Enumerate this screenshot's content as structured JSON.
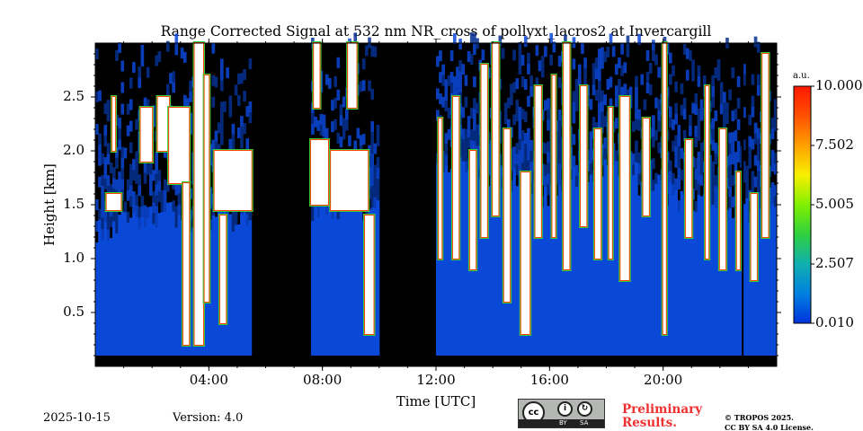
{
  "chart_data": {
    "type": "heatmap",
    "title": "Range Corrected Signal at 532 nm NR_cross of pollyxt_lacros2 at Invercargill",
    "xlabel": "Time [UTC]",
    "ylabel": "Height [km]",
    "xlim_hours": [
      0,
      24
    ],
    "ylim_km": [
      0,
      3.0
    ],
    "xticks": [
      {
        "v": 4,
        "label": "04:00"
      },
      {
        "v": 8,
        "label": "08:00"
      },
      {
        "v": 12,
        "label": "12:00"
      },
      {
        "v": 16,
        "label": "16:00"
      },
      {
        "v": 20,
        "label": "20:00"
      }
    ],
    "yticks": [
      {
        "v": 0.5,
        "label": "0.5"
      },
      {
        "v": 1.0,
        "label": "1.0"
      },
      {
        "v": 1.5,
        "label": "1.5"
      },
      {
        "v": 2.0,
        "label": "2.0"
      },
      {
        "v": 2.5,
        "label": "2.5"
      }
    ],
    "colorbar": {
      "unit": "a.u.",
      "min": 0.01,
      "max": 10.0,
      "ticks": [
        "10.000",
        "7.502",
        "5.005",
        "2.507",
        "0.010"
      ],
      "colors": [
        "#0033dd",
        "#0080e0",
        "#10b0b0",
        "#30d040",
        "#80f000",
        "#f8f000",
        "#ffa000",
        "#ff5000",
        "#ff1800"
      ]
    },
    "background_signal": 1.0,
    "no_data_below_km": 0.1,
    "data_gaps_hours": [
      [
        5.5,
        7.55
      ],
      [
        9.95,
        12.0
      ]
    ],
    "aerosol_top_km": [
      [
        0,
        1.3
      ],
      [
        2,
        1.4
      ],
      [
        4,
        1.4
      ],
      [
        5.5,
        1.4
      ],
      [
        7.55,
        1.5
      ],
      [
        9.95,
        1.5
      ],
      [
        12,
        1.8
      ],
      [
        14,
        1.8
      ],
      [
        16,
        1.6
      ],
      [
        18,
        1.9
      ],
      [
        20,
        1.6
      ],
      [
        22,
        1.4
      ],
      [
        24,
        1.5
      ]
    ],
    "clouds": [
      [
        0.4,
        0.9,
        1.45,
        1.6
      ],
      [
        0.6,
        0.7,
        2.0,
        2.5
      ],
      [
        1.6,
        2.0,
        1.9,
        2.4
      ],
      [
        2.2,
        2.6,
        2.0,
        2.5
      ],
      [
        2.6,
        3.3,
        1.7,
        2.4
      ],
      [
        3.1,
        3.3,
        0.2,
        1.7
      ],
      [
        3.5,
        3.8,
        0.2,
        3.0
      ],
      [
        3.85,
        4.0,
        0.6,
        2.7
      ],
      [
        4.2,
        5.5,
        1.45,
        2.0
      ],
      [
        4.4,
        4.6,
        0.4,
        1.4
      ],
      [
        7.6,
        8.2,
        1.5,
        2.1
      ],
      [
        7.7,
        7.9,
        2.4,
        3.0
      ],
      [
        8.3,
        9.6,
        1.45,
        2.0
      ],
      [
        8.9,
        9.2,
        2.4,
        3.0
      ],
      [
        9.5,
        9.8,
        0.3,
        1.4
      ],
      [
        12.1,
        12.2,
        1.0,
        2.3
      ],
      [
        12.6,
        12.8,
        1.0,
        2.5
      ],
      [
        13.2,
        13.4,
        0.9,
        2.0
      ],
      [
        13.6,
        13.8,
        1.2,
        2.8
      ],
      [
        14.0,
        14.2,
        1.4,
        3.0
      ],
      [
        14.4,
        14.6,
        0.6,
        2.2
      ],
      [
        15.0,
        15.3,
        0.3,
        1.8
      ],
      [
        15.5,
        15.7,
        1.2,
        2.6
      ],
      [
        16.1,
        16.2,
        1.2,
        2.7
      ],
      [
        16.5,
        16.7,
        0.9,
        3.0
      ],
      [
        17.1,
        17.3,
        1.3,
        2.6
      ],
      [
        17.6,
        17.8,
        1.0,
        2.2
      ],
      [
        18.1,
        18.2,
        1.0,
        2.4
      ],
      [
        18.5,
        18.8,
        0.8,
        2.5
      ],
      [
        19.3,
        19.5,
        1.4,
        2.3
      ],
      [
        20.0,
        20.1,
        0.3,
        3.0
      ],
      [
        20.8,
        21.0,
        1.2,
        2.1
      ],
      [
        21.5,
        21.6,
        1.0,
        2.6
      ],
      [
        22.0,
        22.2,
        0.9,
        2.2
      ],
      [
        22.6,
        22.7,
        0.9,
        1.8
      ],
      [
        23.1,
        23.3,
        0.8,
        1.6
      ],
      [
        23.5,
        23.7,
        1.2,
        2.9
      ]
    ],
    "instrument_gap_line_hours": [
      22.8
    ]
  },
  "footer": {
    "date": "2025-10-15",
    "version": "Version: 4.0",
    "preliminary": [
      "Preliminary",
      "Results."
    ],
    "copyright": [
      "© TROPOS 2025.",
      "CC BY SA 4.0 License."
    ],
    "cc_logo": {
      "cc": "cc",
      "by": "BY",
      "sa": "SA"
    }
  }
}
